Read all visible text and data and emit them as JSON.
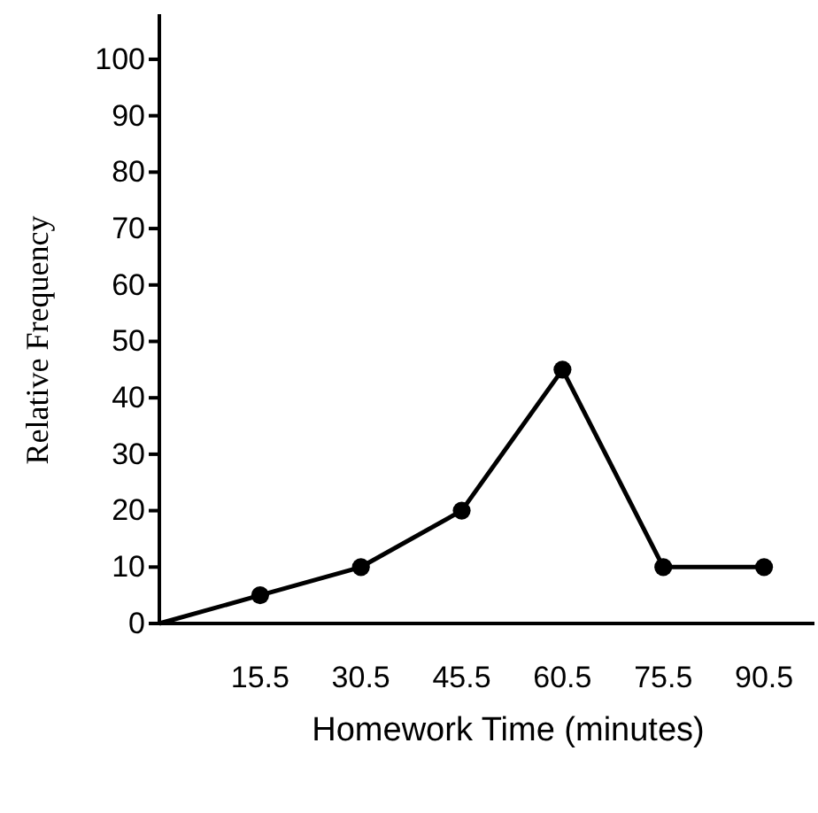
{
  "chart_data": {
    "type": "line",
    "xlabel": "Homework Time (minutes)",
    "ylabel": "Relative Frequency",
    "xlim": [
      0.5,
      98
    ],
    "xticks": [
      15.5,
      30.5,
      45.5,
      60.5,
      75.5,
      90.5
    ],
    "ylim": [
      0,
      108
    ],
    "yticks": [
      0,
      10,
      20,
      30,
      40,
      50,
      60,
      70,
      80,
      90,
      100
    ],
    "series": [
      {
        "color": "#000000",
        "x": [
          0.5,
          15.5
        ],
        "values": [
          0,
          5
        ]
      },
      {
        "marker": "circle",
        "color": "#000000",
        "x": [
          15.5,
          30.5,
          45.5,
          60.5,
          75.5,
          90.5
        ],
        "values": [
          5,
          10,
          20,
          45,
          10,
          10
        ]
      }
    ],
    "grid": false
  }
}
